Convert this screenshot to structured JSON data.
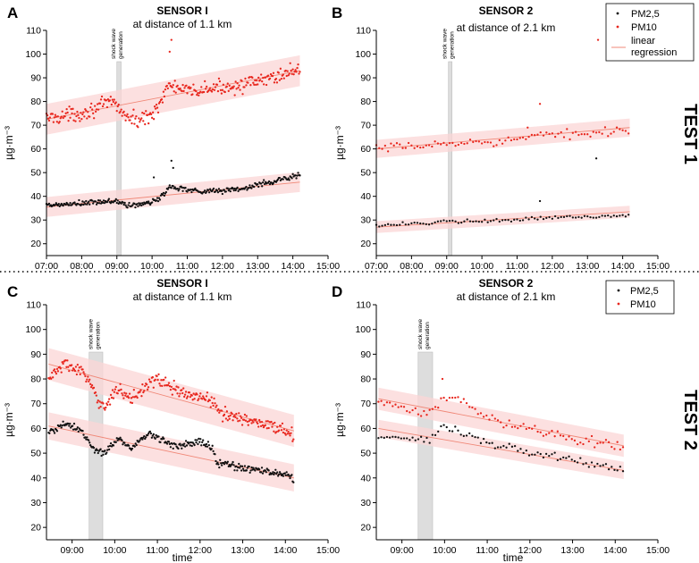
{
  "colors": {
    "pm25": "#111111",
    "pm10": "#e8271e",
    "band": "#fbd5d5",
    "event": "#dddddd"
  },
  "figure": {
    "test1_label": "TEST 1",
    "test2_label": "TEST 2",
    "time_label": "time"
  },
  "legend_test1": {
    "pm25": "PM2,5",
    "pm10": "PM10",
    "reg_line1": "linear",
    "reg_line2": "regression"
  },
  "legend_test2": {
    "pm25": "PM2,5",
    "pm10": "PM10"
  },
  "chart_data": [
    {
      "panel": "A",
      "type": "scatter",
      "title": "SENSOR I",
      "subtitle": "at distance of 1.1 km",
      "ylabel": "µg·m⁻³",
      "xlabel": "",
      "xlim": [
        7.0,
        15.0
      ],
      "ylim": [
        15,
        110
      ],
      "x_ticks": [
        "07:00",
        "08:00",
        "09:00",
        "10:00",
        "11:00",
        "12:00",
        "13:00",
        "14:00",
        "15:00"
      ],
      "x_tick_values": [
        7,
        8,
        9,
        10,
        11,
        12,
        13,
        14,
        15
      ],
      "y_ticks": [
        20,
        30,
        40,
        50,
        60,
        70,
        80,
        90,
        100,
        110
      ],
      "event_label": [
        "shock wave",
        "generation"
      ],
      "event_range": [
        9.0,
        9.12
      ],
      "series": [
        {
          "name": "PM10",
          "key": "pm10",
          "x_range": [
            7.0,
            14.2
          ],
          "interval_min": 1.5,
          "anchors": [
            [
              7.0,
              73
            ],
            [
              8.0,
              75
            ],
            [
              8.9,
              80
            ],
            [
              9.3,
              73
            ],
            [
              9.6,
              72
            ],
            [
              9.95,
              74
            ],
            [
              10.15,
              78
            ],
            [
              10.5,
              87
            ],
            [
              11.0,
              84
            ],
            [
              12.0,
              86
            ],
            [
              13.0,
              88
            ],
            [
              14.2,
              94
            ]
          ],
          "noise": 3.0,
          "outliers": [
            [
              10.55,
              106
            ],
            [
              10.5,
              101
            ]
          ],
          "regression": {
            "x0": 7.0,
            "y0": 72.5,
            "x1": 14.2,
            "y1": 93.0,
            "halfwidth": 6.5
          }
        },
        {
          "name": "PM2,5",
          "key": "pm25",
          "x_range": [
            7.0,
            14.2
          ],
          "interval_min": 1.5,
          "anchors": [
            [
              7.0,
              36
            ],
            [
              8.0,
              37
            ],
            [
              9.0,
              38
            ],
            [
              9.3,
              36
            ],
            [
              9.9,
              37
            ],
            [
              10.2,
              39
            ],
            [
              10.5,
              44
            ],
            [
              11.5,
              42
            ],
            [
              12.5,
              43
            ],
            [
              14.2,
              49
            ]
          ],
          "noise": 1.2,
          "outliers": [
            [
              10.55,
              55
            ],
            [
              10.6,
              52
            ],
            [
              10.05,
              48
            ]
          ],
          "regression": {
            "x0": 7.0,
            "y0": 35.5,
            "x1": 14.2,
            "y1": 46.0,
            "halfwidth": 4.2
          }
        }
      ]
    },
    {
      "panel": "B",
      "type": "scatter",
      "title": "SENSOR 2",
      "subtitle": "at distance of 2.1 km",
      "ylabel": "µg·m⁻³",
      "xlabel": "",
      "xlim": [
        7.0,
        15.0
      ],
      "ylim": [
        15,
        110
      ],
      "x_ticks": [
        "07:00",
        "08:00",
        "09:00",
        "10:00",
        "11:00",
        "12:00",
        "13:00",
        "14:00",
        "15:00"
      ],
      "x_tick_values": [
        7,
        8,
        9,
        10,
        11,
        12,
        13,
        14,
        15
      ],
      "y_ticks": [
        20,
        30,
        40,
        50,
        60,
        70,
        80,
        90,
        100,
        110
      ],
      "event_label": [
        "shock wave",
        "generation"
      ],
      "event_range": [
        9.05,
        9.15
      ],
      "series": [
        {
          "name": "PM10",
          "key": "pm10",
          "x_range": [
            7.0,
            14.2
          ],
          "interval_min": 5,
          "anchors": [
            [
              7.0,
              60
            ],
            [
              9.0,
              62
            ],
            [
              11.0,
              64
            ],
            [
              12.0,
              66
            ],
            [
              14.2,
              68
            ]
          ],
          "noise": 1.8,
          "outliers": [
            [
              13.3,
              106
            ],
            [
              11.65,
              79
            ],
            [
              11.3,
              69
            ]
          ],
          "regression": {
            "x0": 7.0,
            "y0": 60.0,
            "x1": 14.2,
            "y1": 69.0,
            "halfwidth": 3.8
          }
        },
        {
          "name": "PM2,5",
          "key": "pm25",
          "x_range": [
            7.0,
            14.2
          ],
          "interval_min": 5,
          "anchors": [
            [
              7.0,
              28
            ],
            [
              9.0,
              29
            ],
            [
              11.0,
              30
            ],
            [
              12.0,
              31
            ],
            [
              14.2,
              32
            ]
          ],
          "noise": 0.9,
          "outliers": [
            [
              11.65,
              38
            ],
            [
              13.25,
              56
            ]
          ],
          "regression": {
            "x0": 7.0,
            "y0": 27.0,
            "x1": 14.2,
            "y1": 33.5,
            "halfwidth": 2.5
          }
        }
      ]
    },
    {
      "panel": "C",
      "type": "scatter",
      "title": "SENSOR I",
      "subtitle": "at distance of 1.1 km",
      "ylabel": "µg·m⁻³",
      "xlabel": "time",
      "xlim": [
        8.4,
        15.0
      ],
      "ylim": [
        15,
        110
      ],
      "x_ticks": [
        "09:00",
        "10:00",
        "11:00",
        "12:00",
        "13:00",
        "14:00",
        "15:00"
      ],
      "x_tick_values": [
        9,
        10,
        11,
        12,
        13,
        14,
        15
      ],
      "y_ticks": [
        20,
        30,
        40,
        50,
        60,
        70,
        80,
        90,
        100,
        110
      ],
      "event_label": [
        "shock wave",
        "generation"
      ],
      "event_range": [
        9.4,
        9.72
      ],
      "series": [
        {
          "name": "PM10",
          "key": "pm10",
          "x_range": [
            8.45,
            14.2
          ],
          "interval_min": 1.2,
          "anchors": [
            [
              8.45,
              80
            ],
            [
              8.8,
              86
            ],
            [
              9.25,
              83
            ],
            [
              9.55,
              73
            ],
            [
              9.75,
              68
            ],
            [
              10.0,
              76
            ],
            [
              10.4,
              72
            ],
            [
              10.9,
              80
            ],
            [
              11.2,
              78
            ],
            [
              11.6,
              74
            ],
            [
              12.2,
              72
            ],
            [
              12.5,
              66
            ],
            [
              13.0,
              64
            ],
            [
              13.5,
              62
            ],
            [
              14.2,
              58
            ]
          ],
          "noise": 2.5,
          "outliers": [],
          "regression": {
            "x0": 8.45,
            "y0": 86.0,
            "x1": 14.2,
            "y1": 59.0,
            "halfwidth": 6.5
          }
        },
        {
          "name": "PM2,5",
          "key": "pm25",
          "x_range": [
            8.45,
            14.2
          ],
          "interval_min": 1.2,
          "anchors": [
            [
              8.45,
              58
            ],
            [
              8.8,
              62
            ],
            [
              9.2,
              59
            ],
            [
              9.5,
              52
            ],
            [
              9.75,
              50
            ],
            [
              10.1,
              56
            ],
            [
              10.4,
              52
            ],
            [
              10.8,
              58
            ],
            [
              11.4,
              53
            ],
            [
              12.0,
              55
            ],
            [
              12.3,
              52
            ],
            [
              12.4,
              46
            ],
            [
              13.0,
              44
            ],
            [
              13.5,
              43
            ],
            [
              14.2,
              40
            ]
          ],
          "noise": 1.5,
          "outliers": [],
          "regression": {
            "x0": 8.45,
            "y0": 61.0,
            "x1": 14.2,
            "y1": 40.0,
            "halfwidth": 5.5
          }
        }
      ]
    },
    {
      "panel": "D",
      "type": "scatter",
      "title": "SENSOR 2",
      "subtitle": "at distance of 2.1 km",
      "ylabel": "µg·m⁻³",
      "xlabel": "time",
      "xlim": [
        8.4,
        15.0
      ],
      "ylim": [
        15,
        110
      ],
      "x_ticks": [
        "09:00",
        "10:00",
        "11:00",
        "12:00",
        "13:00",
        "14:00",
        "15:00"
      ],
      "x_tick_values": [
        9,
        10,
        11,
        12,
        13,
        14,
        15
      ],
      "y_ticks": [
        20,
        30,
        40,
        50,
        60,
        70,
        80,
        90,
        100,
        110
      ],
      "event_label": [
        "shock wave",
        "generation"
      ],
      "event_range": [
        9.38,
        9.72
      ],
      "series": [
        {
          "name": "PM10",
          "key": "pm10",
          "x_range": [
            8.45,
            14.2
          ],
          "interval_min": 4,
          "anchors": [
            [
              8.45,
              70
            ],
            [
              9.0,
              68
            ],
            [
              9.5,
              66
            ],
            [
              10.0,
              72
            ],
            [
              10.3,
              72
            ],
            [
              11.0,
              64
            ],
            [
              12.0,
              60
            ],
            [
              13.0,
              56
            ],
            [
              14.2,
              53
            ]
          ],
          "noise": 2.0,
          "outliers": [
            [
              9.95,
              80
            ]
          ],
          "regression": {
            "x0": 8.45,
            "y0": 72.0,
            "x1": 14.2,
            "y1": 53.0,
            "halfwidth": 4.5
          }
        },
        {
          "name": "PM2,5",
          "key": "pm25",
          "x_range": [
            8.45,
            14.2
          ],
          "interval_min": 4,
          "anchors": [
            [
              8.45,
              57
            ],
            [
              9.0,
              57
            ],
            [
              9.6,
              55
            ],
            [
              10.0,
              60
            ],
            [
              10.5,
              58
            ],
            [
              11.0,
              54
            ],
            [
              12.0,
              50
            ],
            [
              13.0,
              47
            ],
            [
              14.2,
              43
            ]
          ],
          "noise": 1.6,
          "outliers": [],
          "regression": {
            "x0": 8.45,
            "y0": 60.0,
            "x1": 14.2,
            "y1": 43.0,
            "halfwidth": 3.5
          }
        }
      ]
    }
  ]
}
